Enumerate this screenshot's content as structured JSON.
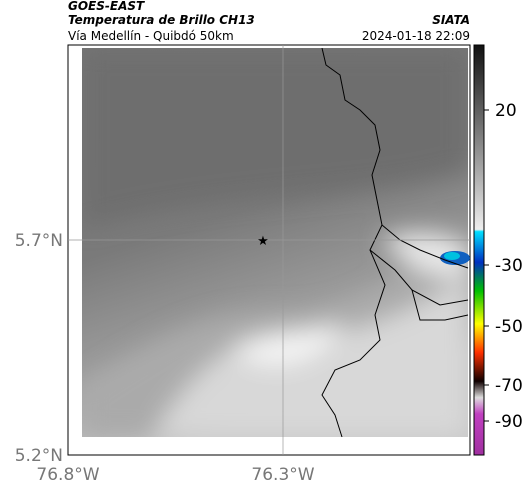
{
  "header": {
    "satellite": "GOES-EAST",
    "product": "Temperatura de Brillo CH13",
    "route": "Vía Medellín - Quibdó 50km",
    "source": "SIATA",
    "timestamp": "2024-01-18 22:09"
  },
  "map": {
    "lat_labels": [
      "5.7°N",
      "5.2°N"
    ],
    "lon_labels": [
      "76.8°W",
      "76.3°W"
    ]
  },
  "colorbar": {
    "ticks": [
      "20",
      "-30",
      "-50",
      "-70",
      "-90"
    ]
  }
}
